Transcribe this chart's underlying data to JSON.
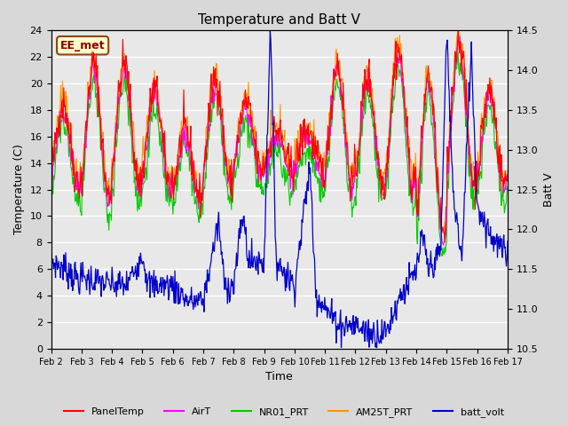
{
  "title": "Temperature and Batt V",
  "xlabel": "Time",
  "ylabel_left": "Temperature (C)",
  "ylabel_right": "Batt V",
  "annotation": "EE_met",
  "ylim_left": [
    0,
    24
  ],
  "ylim_right": [
    10.5,
    14.5
  ],
  "yticks_left": [
    0,
    2,
    4,
    6,
    8,
    10,
    12,
    14,
    16,
    18,
    20,
    22,
    24
  ],
  "yticks_right": [
    10.5,
    11.0,
    11.5,
    12.0,
    12.5,
    13.0,
    13.5,
    14.0,
    14.5
  ],
  "xtick_labels": [
    "Feb 2",
    "Feb 3",
    "Feb 4",
    "Feb 5",
    "Feb 6",
    "Feb 7",
    "Feb 8",
    "Feb 9",
    "Feb 10",
    "Feb 11",
    "Feb 12",
    "Feb 13",
    "Feb 14",
    "Feb 15",
    "Feb 16",
    "Feb 17"
  ],
  "colors": {
    "PanelTemp": "#ff0000",
    "AirT": "#ff00ff",
    "NR01_PRT": "#00cc00",
    "AM25T_PRT": "#ff9900",
    "batt_volt": "#0000cc"
  },
  "plot_bg_color": "#e8e8e8",
  "fig_bg_color": "#d8d8d8",
  "legend_entries": [
    "PanelTemp",
    "AirT",
    "NR01_PRT",
    "AM25T_PRT",
    "batt_volt"
  ]
}
